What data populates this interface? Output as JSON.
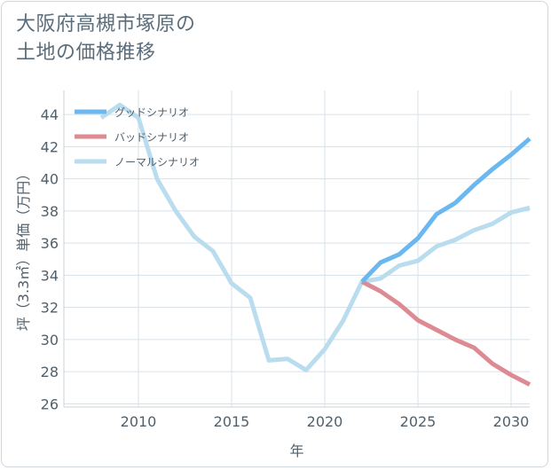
{
  "title_lines": [
    "大阪府高槻市塚原の",
    "土地の価格推移"
  ],
  "chart_data": {
    "type": "line",
    "xlabel": "年",
    "ylabel": "坪（3.3㎡）単価（万円）",
    "xlim": [
      2006,
      2031
    ],
    "ylim": [
      25.8,
      45.5
    ],
    "xticks": [
      2010,
      2015,
      2020,
      2025,
      2030
    ],
    "yticks": [
      26,
      28,
      30,
      32,
      34,
      36,
      38,
      40,
      42,
      44
    ],
    "grid": true,
    "legend_position": "top-left",
    "series": [
      {
        "name": "グッドシナリオ",
        "color": "#6ab8ef",
        "x": [
          2022,
          2023,
          2024,
          2025,
          2026,
          2027,
          2028,
          2029,
          2030,
          2031
        ],
        "y": [
          33.6,
          34.8,
          35.3,
          36.3,
          37.8,
          38.5,
          39.6,
          40.6,
          41.5,
          42.5
        ]
      },
      {
        "name": "バッドシナリオ",
        "color": "#de8a93",
        "x": [
          2022,
          2023,
          2024,
          2025,
          2026,
          2027,
          2028,
          2029,
          2030,
          2031
        ],
        "y": [
          33.6,
          33.0,
          32.2,
          31.2,
          30.6,
          30.0,
          29.5,
          28.5,
          27.8,
          27.2
        ]
      },
      {
        "name": "ノーマルシナリオ",
        "color": "#b9dcee",
        "x": [
          2008,
          2009,
          2010,
          2011,
          2012,
          2013,
          2014,
          2015,
          2016,
          2017,
          2018,
          2019,
          2020,
          2021,
          2022,
          2023,
          2024,
          2025,
          2026,
          2027,
          2028,
          2029,
          2030,
          2031
        ],
        "y": [
          43.8,
          44.6,
          43.8,
          40.0,
          38.0,
          36.4,
          35.5,
          33.5,
          32.6,
          28.7,
          28.8,
          28.1,
          29.4,
          31.2,
          33.6,
          33.8,
          34.6,
          34.9,
          35.8,
          36.2,
          36.8,
          37.2,
          37.9,
          38.2
        ]
      }
    ]
  }
}
